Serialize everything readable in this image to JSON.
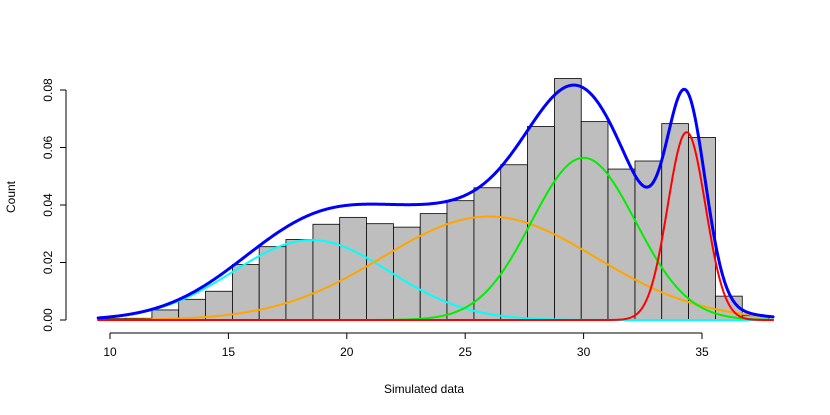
{
  "chart_data": {
    "type": "histogram",
    "title": "",
    "xlabel": "Simulated data",
    "ylabel": "Count",
    "xlim": [
      9.5,
      38
    ],
    "ylim": [
      0,
      0.085
    ],
    "x_ticks": [
      10,
      15,
      20,
      25,
      30,
      35
    ],
    "y_ticks": [
      0.0,
      0.02,
      0.04,
      0.06,
      0.08
    ],
    "y_tick_labels": [
      "0.00",
      "0.02",
      "0.04",
      "0.06",
      "0.08"
    ],
    "bar_color": "#bebebe",
    "bins": [
      {
        "start": 9.5,
        "end": 10.63,
        "value": 0.0005
      },
      {
        "start": 10.63,
        "end": 11.77,
        "value": 0.0006
      },
      {
        "start": 11.77,
        "end": 12.9,
        "value": 0.0035
      },
      {
        "start": 12.9,
        "end": 14.03,
        "value": 0.0072
      },
      {
        "start": 14.03,
        "end": 15.17,
        "value": 0.01
      },
      {
        "start": 15.17,
        "end": 16.3,
        "value": 0.0193
      },
      {
        "start": 16.3,
        "end": 17.43,
        "value": 0.0255
      },
      {
        "start": 17.43,
        "end": 18.57,
        "value": 0.028
      },
      {
        "start": 18.57,
        "end": 19.7,
        "value": 0.0333
      },
      {
        "start": 19.7,
        "end": 20.83,
        "value": 0.0357
      },
      {
        "start": 20.83,
        "end": 21.97,
        "value": 0.0335
      },
      {
        "start": 21.97,
        "end": 23.1,
        "value": 0.0323
      },
      {
        "start": 23.1,
        "end": 24.23,
        "value": 0.037
      },
      {
        "start": 24.23,
        "end": 25.37,
        "value": 0.0415
      },
      {
        "start": 25.37,
        "end": 26.5,
        "value": 0.046
      },
      {
        "start": 26.5,
        "end": 27.63,
        "value": 0.054
      },
      {
        "start": 27.63,
        "end": 28.77,
        "value": 0.0673
      },
      {
        "start": 28.77,
        "end": 29.9,
        "value": 0.084
      },
      {
        "start": 29.9,
        "end": 31.03,
        "value": 0.069
      },
      {
        "start": 31.03,
        "end": 32.17,
        "value": 0.0525
      },
      {
        "start": 32.17,
        "end": 33.3,
        "value": 0.0553
      },
      {
        "start": 33.3,
        "end": 34.43,
        "value": 0.0683
      },
      {
        "start": 34.43,
        "end": 35.57,
        "value": 0.0635
      },
      {
        "start": 35.57,
        "end": 36.7,
        "value": 0.0083
      },
      {
        "start": 36.7,
        "end": 37.83,
        "value": 0.0015
      }
    ],
    "components": [
      {
        "color": "#00ffff",
        "mean": 18.5,
        "sd": 3.3,
        "weight": 0.23,
        "width": 2
      },
      {
        "color": "#ffa500",
        "mean": 26.0,
        "sd": 4.5,
        "weight": 0.406,
        "width": 2
      },
      {
        "color": "#00ee00",
        "mean": 30.0,
        "sd": 2.2,
        "weight": 0.311,
        "width": 2
      },
      {
        "color": "#ff0000",
        "mean": 34.35,
        "sd": 0.8,
        "weight": 0.131,
        "width": 2
      }
    ],
    "mixture": {
      "color": "#0000ff",
      "width": 3
    }
  }
}
